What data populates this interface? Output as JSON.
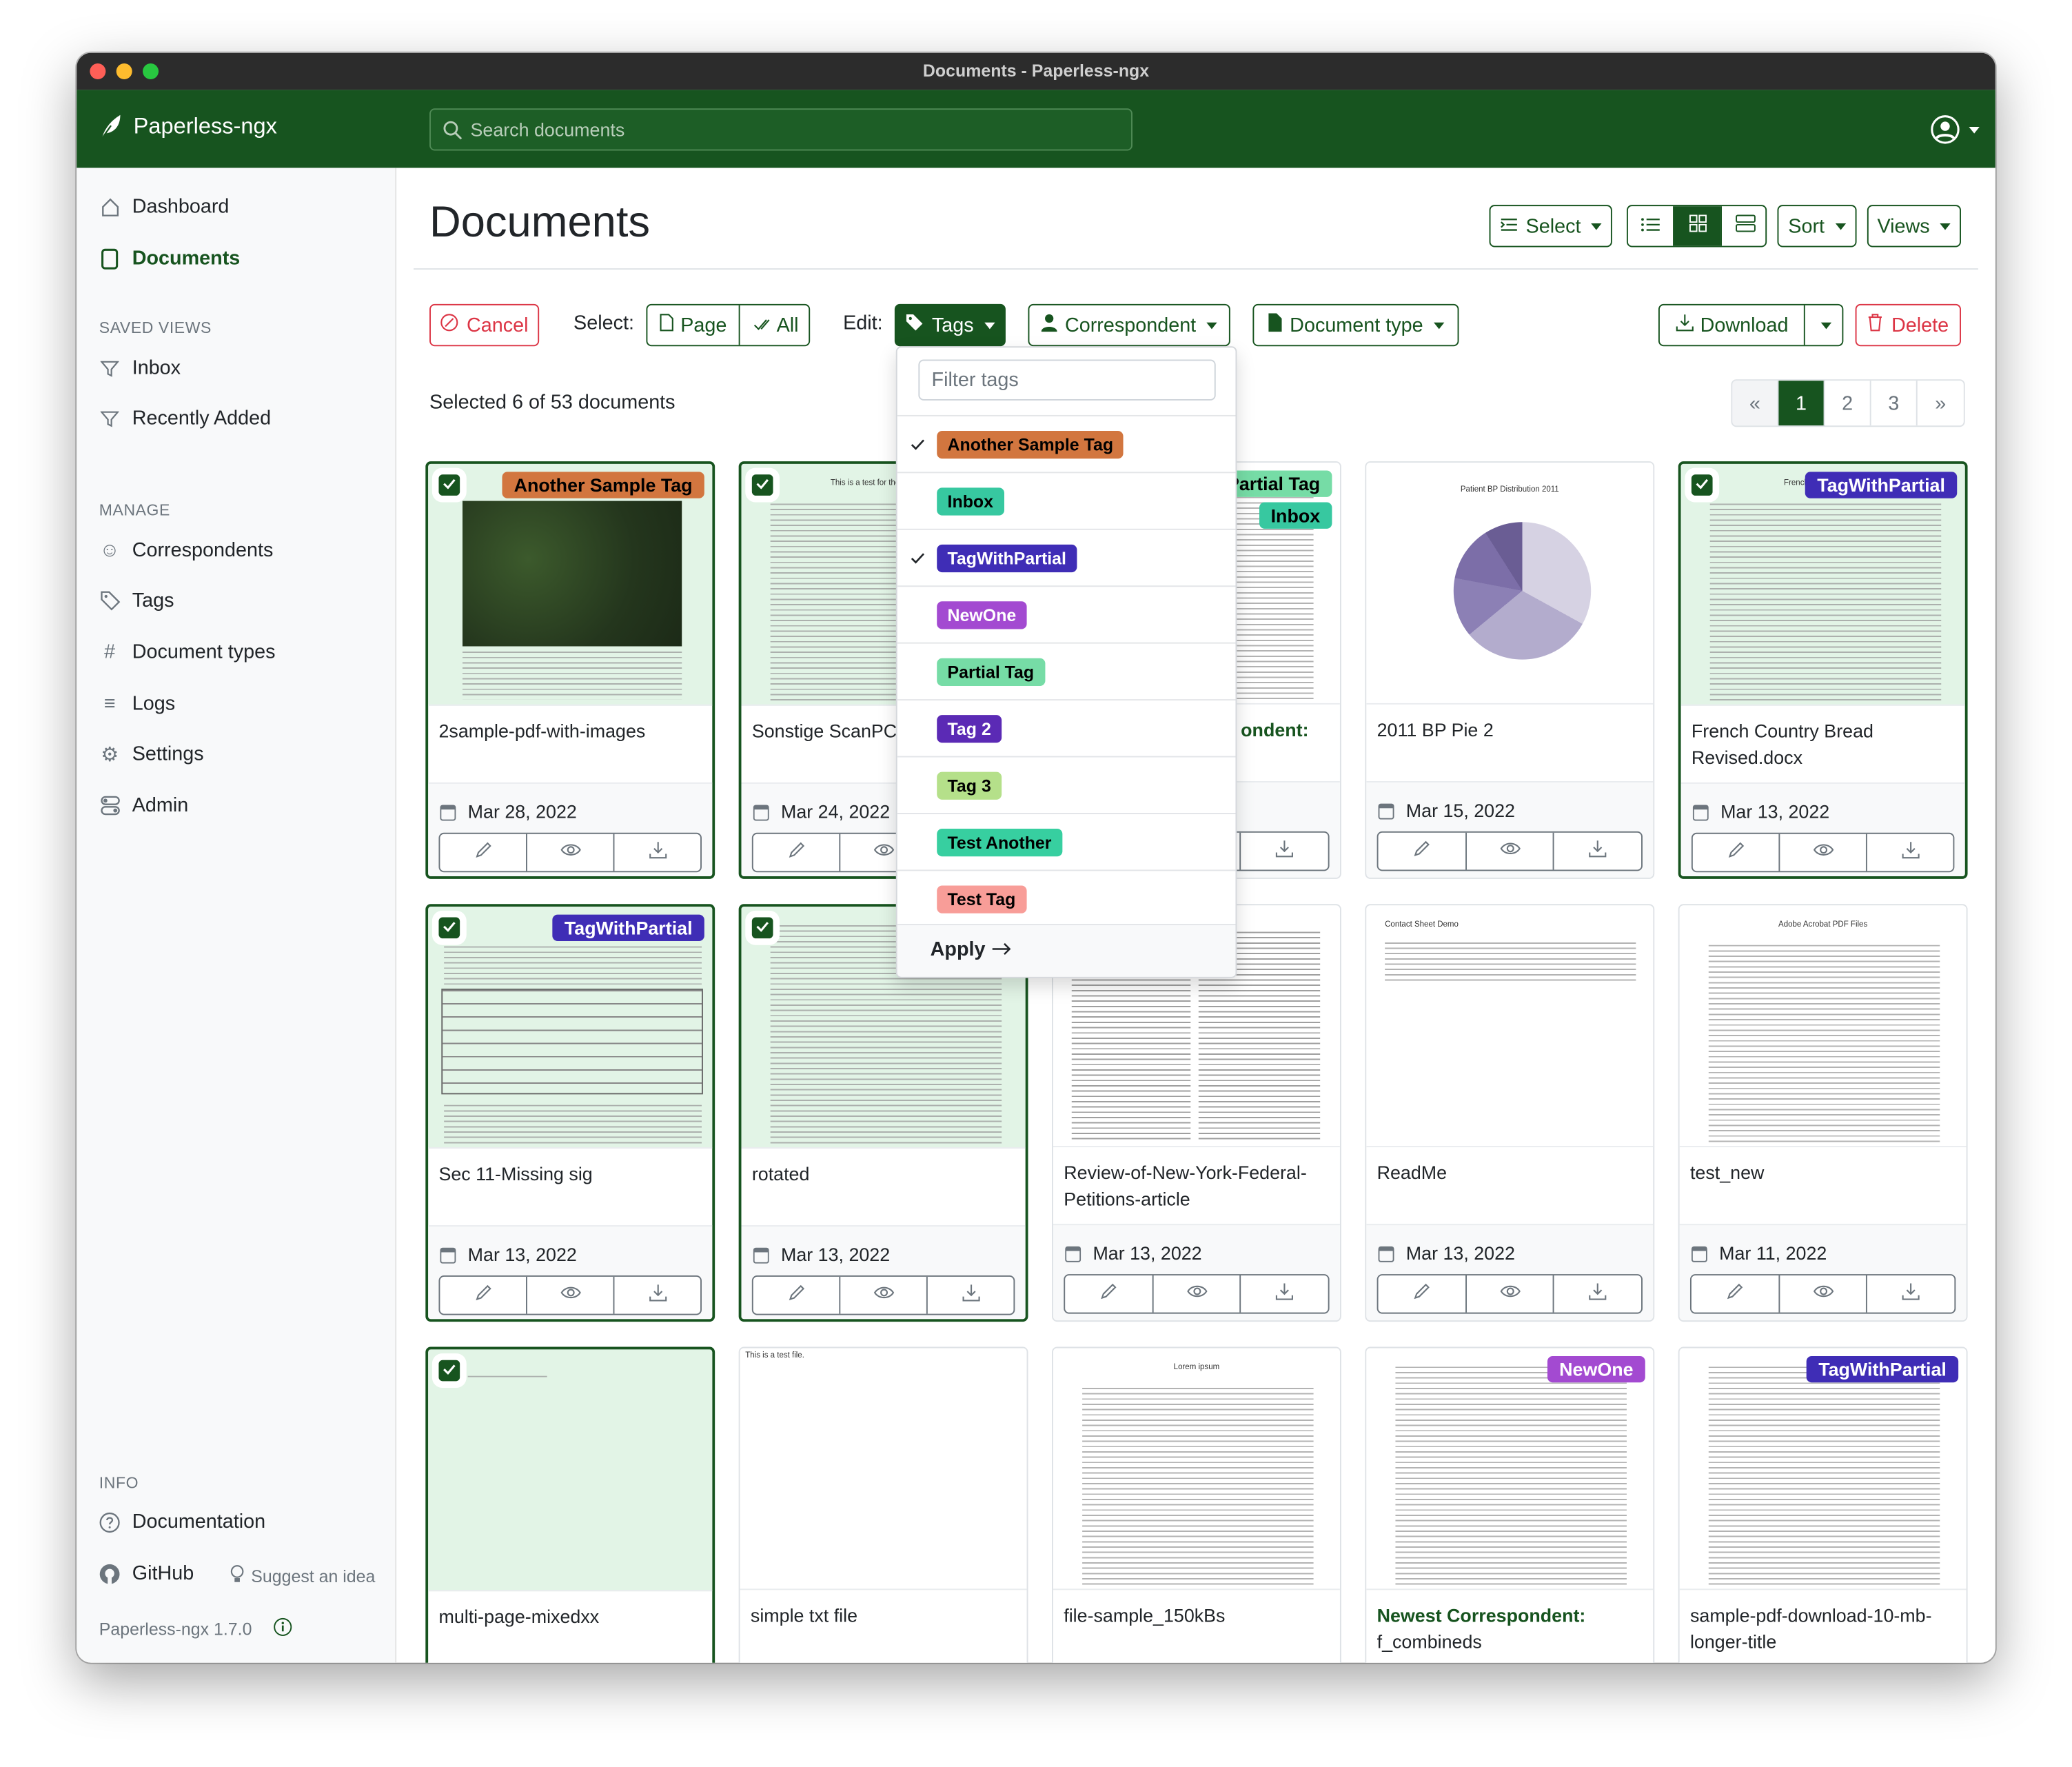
{
  "window": {
    "title": "Documents - Paperless-ngx"
  },
  "navbar": {
    "brand": "Paperless-ngx",
    "search_placeholder": "Search documents"
  },
  "sidebar": {
    "items": [
      {
        "label": "Dashboard",
        "icon": "house-icon"
      },
      {
        "label": "Documents",
        "icon": "file-icon",
        "active": true
      }
    ],
    "saved_views_heading": "SAVED VIEWS",
    "saved_views": [
      {
        "label": "Inbox"
      },
      {
        "label": "Recently Added"
      }
    ],
    "manage_heading": "MANAGE",
    "manage": [
      {
        "label": "Correspondents",
        "icon": "person-icon"
      },
      {
        "label": "Tags",
        "icon": "tag-icon"
      },
      {
        "label": "Document types",
        "icon": "hash-icon"
      },
      {
        "label": "Logs",
        "icon": "list-icon"
      },
      {
        "label": "Settings",
        "icon": "gear-icon"
      },
      {
        "label": "Admin",
        "icon": "toggles-icon"
      }
    ],
    "info_heading": "INFO",
    "documentation": "Documentation",
    "github": "GitHub",
    "suggest": "Suggest an idea",
    "version": "Paperless-ngx 1.7.0"
  },
  "header": {
    "title": "Documents",
    "select": "Select",
    "sort": "Sort",
    "views": "Views"
  },
  "bulk": {
    "cancel": "Cancel",
    "select_label": "Select:",
    "page": "Page",
    "all": "All",
    "edit_label": "Edit:",
    "tags": "Tags",
    "correspondent": "Correspondent",
    "document_type": "Document type",
    "download": "Download",
    "delete": "Delete",
    "selected_text": "Selected 6 of 53 documents"
  },
  "pagination": {
    "prev": "«",
    "pages": [
      "1",
      "2",
      "3"
    ],
    "current": "1",
    "next": "»"
  },
  "tags_dropdown": {
    "filter_placeholder": "Filter tags",
    "items": [
      {
        "label": "Another Sample Tag",
        "color": "#d2763f",
        "text": "#000000",
        "checked": true
      },
      {
        "label": "Inbox",
        "color": "#37c8a0",
        "text": "#000000",
        "checked": false
      },
      {
        "label": "TagWithPartial",
        "color": "#3f2db6",
        "text": "#ffffff",
        "checked": true
      },
      {
        "label": "NewOne",
        "color": "#a34ad1",
        "text": "#ffffff",
        "checked": false
      },
      {
        "label": "Partial Tag",
        "color": "#76dca6",
        "text": "#000000",
        "checked": false
      },
      {
        "label": "Tag 2",
        "color": "#5b2ab5",
        "text": "#ffffff",
        "checked": false
      },
      {
        "label": "Tag 3",
        "color": "#b5e08a",
        "text": "#000000",
        "checked": false
      },
      {
        "label": "Test Another",
        "color": "#37cfa0",
        "text": "#000000",
        "checked": false
      },
      {
        "label": "Test Tag",
        "color": "#f89d98",
        "text": "#000000",
        "checked": false
      }
    ],
    "apply": "Apply"
  },
  "documents": [
    {
      "title": "2sample-pdf-with-images",
      "date": "Mar 28, 2022",
      "tags": [
        0
      ],
      "selected": true,
      "thumb": "map"
    },
    {
      "title": "Sonstige ScanPC2 24_081058",
      "date": "Mar 24, 2022",
      "tags": [],
      "selected": true,
      "thumb": "text",
      "thumb_text": "This is a test for the double sp"
    },
    {
      "correspondent": "ondent:",
      "title": "",
      "date": "",
      "tags": [
        4,
        1
      ],
      "selected": false,
      "thumb": "text"
    },
    {
      "title": "2011 BP Pie 2",
      "date": "Mar 15, 2022",
      "tags": [],
      "selected": false,
      "thumb": "pie",
      "thumb_text": "Patient BP Distribution 2011"
    },
    {
      "title": "French Country Bread Revised.docx",
      "date": "Mar 13, 2022",
      "tags": [
        2
      ],
      "selected": true,
      "thumb": "text",
      "thumb_text": "French Country Bread"
    },
    {
      "title": "Sec 11-Missing sig",
      "date": "Mar 13, 2022",
      "tags": [
        2
      ],
      "selected": true,
      "thumb": "form"
    },
    {
      "title": "rotated",
      "date": "Mar 13, 2022",
      "tags": [],
      "selected": true,
      "thumb": "text"
    },
    {
      "title": "Review-of-New-York-Federal-Petitions-article",
      "date": "Mar 13, 2022",
      "tags": [],
      "selected": false,
      "thumb": "columns"
    },
    {
      "title": "ReadMe",
      "date": "Mar 13, 2022",
      "tags": [],
      "selected": false,
      "thumb": "sparse",
      "thumb_text": "Contact Sheet Demo"
    },
    {
      "title": "test_new",
      "date": "Mar 11, 2022",
      "tags": [],
      "selected": false,
      "thumb": "text",
      "thumb_text": "Adobe Acrobat PDF Files"
    },
    {
      "title": "multi-page-mixedxx",
      "date": "",
      "tags": [],
      "selected": true,
      "thumb": "blank"
    },
    {
      "title": "simple txt file",
      "date": "",
      "tags": [],
      "selected": false,
      "thumb": "blank",
      "thumb_text": "This is a test file."
    },
    {
      "title": "file-sample_150kBs",
      "date": "",
      "tags": [],
      "selected": false,
      "thumb": "text",
      "thumb_text": "Lorem ipsum"
    },
    {
      "correspondent": "Newest Correspondent:",
      "title": "f_combineds",
      "date": "",
      "tags": [
        3
      ],
      "selected": false,
      "thumb": "text"
    },
    {
      "title": "sample-pdf-download-10-mb-longer-title",
      "date": "",
      "tags": [
        2
      ],
      "selected": false,
      "thumb": "text"
    }
  ],
  "colors": {
    "primary": "#17541f",
    "danger": "#dc3545",
    "selected_bg": "#e2f4e6"
  }
}
